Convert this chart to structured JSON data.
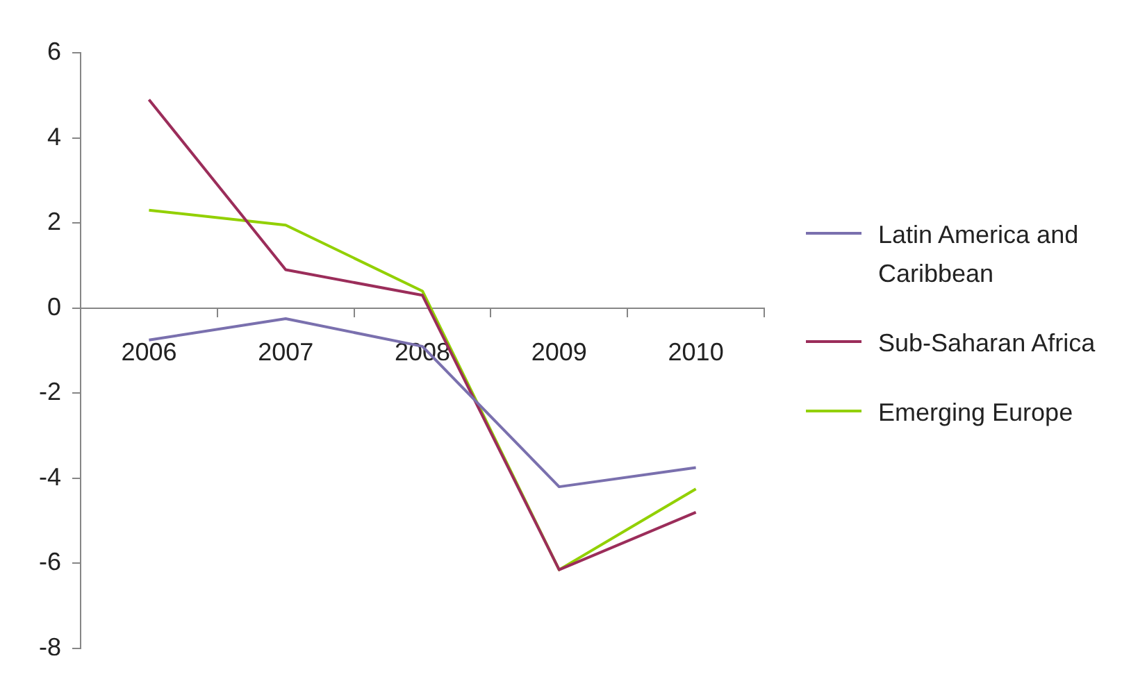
{
  "chart_data": {
    "type": "line",
    "categories": [
      "2006",
      "2007",
      "2008",
      "2009",
      "2010"
    ],
    "series": [
      {
        "name": "Latin America and Caribbean",
        "color": "#7a70ae",
        "values": [
          -0.75,
          -0.25,
          -0.9,
          -4.2,
          -3.75
        ]
      },
      {
        "name": "Sub-Saharan Africa",
        "color": "#9b2d5a",
        "values": [
          4.9,
          0.9,
          0.3,
          -6.15,
          -4.8
        ]
      },
      {
        "name": "Emerging Europe",
        "color": "#92d000",
        "values": [
          2.3,
          1.95,
          0.4,
          -6.15,
          -4.25
        ]
      }
    ],
    "ylim": [
      -8,
      6
    ],
    "yticks": [
      -8,
      -6,
      -4,
      -2,
      0,
      2,
      4,
      6
    ],
    "grid": false,
    "legend": "right",
    "marker": "none",
    "line_style": "solid"
  }
}
